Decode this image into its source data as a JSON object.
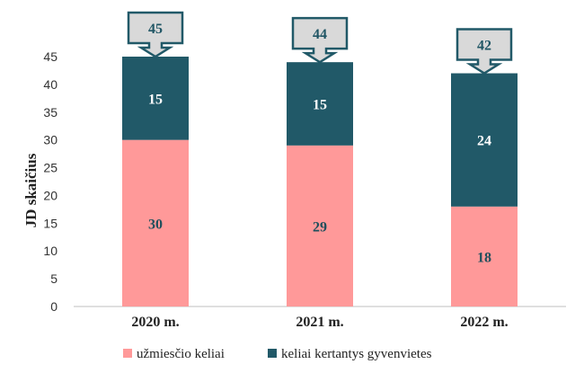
{
  "chart_data": {
    "type": "bar",
    "stacked": true,
    "categories": [
      "2020 m.",
      "2021 m.",
      "2022 m."
    ],
    "series": [
      {
        "name": "užmiesčio keliai",
        "values": [
          30,
          29,
          18
        ],
        "color": "#ff9999"
      },
      {
        "name": "keliai kertantys gyvenvietes",
        "values": [
          15,
          15,
          24
        ],
        "color": "#215968"
      }
    ],
    "totals": [
      45,
      44,
      42
    ],
    "ylabel": "JD skaičius",
    "ylim": [
      0,
      45
    ],
    "yticks": [
      0,
      5,
      10,
      15,
      20,
      25,
      30,
      35,
      40,
      45
    ],
    "grid": false,
    "legend": "bottom",
    "colors": {
      "callout_fill": "#d9d9d9",
      "callout_stroke": "#215968",
      "axis": "#bfbfbf"
    }
  }
}
